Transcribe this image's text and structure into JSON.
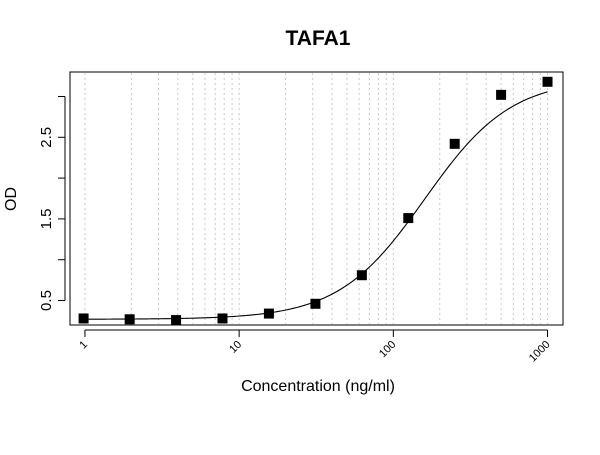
{
  "chart_data": {
    "type": "scatter",
    "title": "TAFA1",
    "xlabel": "Concentration (ng/ml)",
    "ylabel": "OD",
    "x_scale": "log10",
    "xlim": [
      0.8,
      1260
    ],
    "ylim": [
      0.2,
      3.3
    ],
    "x_ticks": [
      1,
      10,
      100,
      1000
    ],
    "x_tick_labels": [
      "1",
      "10",
      "100",
      "1000"
    ],
    "y_ticks": [
      0.5,
      1.5,
      2.5
    ],
    "y_tick_labels": [
      "0.5",
      "1.5",
      "2.5"
    ],
    "y_minor_ticks": [
      1.0,
      2.0,
      3.0
    ],
    "grid": "vertical dotted at log minor ticks",
    "series": [
      {
        "marker": "filled-square",
        "color": "#000000",
        "x": [
          0.98,
          1.95,
          3.9,
          7.8,
          15.6,
          31.25,
          62.5,
          125,
          250,
          500,
          1000
        ],
        "y": [
          0.28,
          0.27,
          0.26,
          0.28,
          0.34,
          0.46,
          0.81,
          1.51,
          2.42,
          3.02,
          3.18
        ]
      }
    ],
    "fit_curve": {
      "type": "4PL",
      "color": "#000000"
    }
  }
}
